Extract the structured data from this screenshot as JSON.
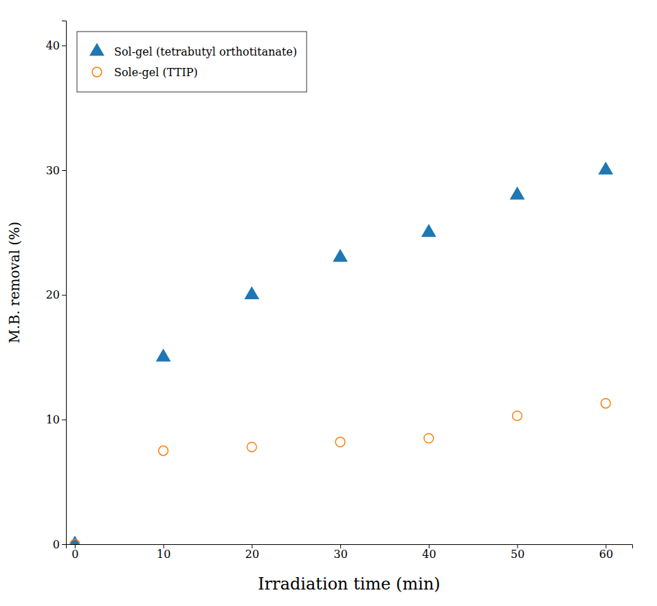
{
  "chart_data": {
    "type": "scatter",
    "x_label": "Irradiation time (min)",
    "y_label": "M.B. removal (%)",
    "x": [
      0,
      10,
      20,
      30,
      40,
      50,
      60
    ],
    "series": [
      {
        "name": "Sol-gel (tetrabutyl orthotitanate)",
        "marker": "triangle",
        "values": [
          0,
          15,
          20,
          23,
          25,
          28,
          30
        ]
      },
      {
        "name": "Sole-gel (TTIP)",
        "marker": "circle-open",
        "values": [
          0,
          7.5,
          7.8,
          8.2,
          8.5,
          10.3,
          11.3
        ]
      }
    ],
    "xlim": [
      -1,
      63
    ],
    "ylim": [
      0,
      42
    ],
    "xticks": [
      0,
      10,
      20,
      30,
      40,
      50,
      60
    ],
    "yticks": [
      0,
      10,
      20,
      30,
      40
    ],
    "grid": false,
    "legend": "upper left"
  }
}
